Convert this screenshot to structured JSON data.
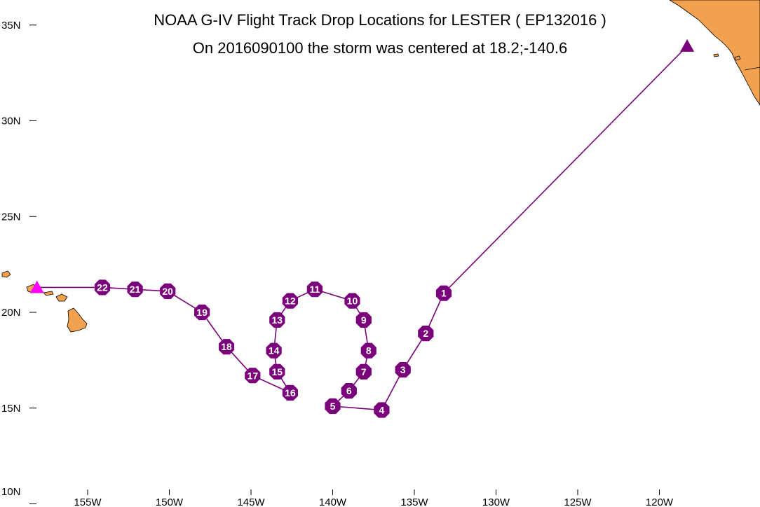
{
  "title_line1": "NOAA G-IV Flight Track Drop Locations for LESTER ( EP132016 )",
  "title_line2": "On 2016090100 the storm was centered at 18.2;-140.6",
  "lon_ticks": [
    {
      "lon": -155,
      "label": "155W"
    },
    {
      "lon": -150,
      "label": "150W"
    },
    {
      "lon": -145,
      "label": "145W"
    },
    {
      "lon": -140,
      "label": "140W"
    },
    {
      "lon": -135,
      "label": "135W"
    },
    {
      "lon": -130,
      "label": "130W"
    },
    {
      "lon": -125,
      "label": "125W"
    },
    {
      "lon": -120,
      "label": "120W"
    }
  ],
  "lat_ticks": [
    {
      "lat": 35,
      "label": "35N"
    },
    {
      "lat": 30,
      "label": "30N"
    },
    {
      "lat": 25,
      "label": "25N"
    },
    {
      "lat": 20,
      "label": "20N"
    },
    {
      "lat": 15,
      "label": "15N"
    },
    {
      "lat": 10,
      "label": "10N"
    }
  ],
  "colors": {
    "land": "#f2a14e",
    "track": "#7b007b",
    "drop_fill": "#7b007b",
    "drop_text": "#ffffff",
    "start_marker": "#ff00ff",
    "end_marker": "#7b007b"
  },
  "start_marker": {
    "lat": 21.3,
    "lon": -158.1,
    "icon": "magenta-triangle-icon"
  },
  "end_marker": {
    "lat": 33.9,
    "lon": -118.3,
    "icon": "purple-triangle-icon"
  },
  "drops": [
    {
      "id": "1",
      "lat": 21.0,
      "lon": -133.2
    },
    {
      "id": "2",
      "lat": 18.9,
      "lon": -134.3
    },
    {
      "id": "3",
      "lat": 17.0,
      "lon": -135.7
    },
    {
      "id": "4",
      "lat": 14.9,
      "lon": -137.0
    },
    {
      "id": "5",
      "lat": 15.1,
      "lon": -140.0
    },
    {
      "id": "6",
      "lat": 15.9,
      "lon": -139.0
    },
    {
      "id": "7",
      "lat": 16.9,
      "lon": -138.1
    },
    {
      "id": "8",
      "lat": 18.0,
      "lon": -137.8
    },
    {
      "id": "9",
      "lat": 19.6,
      "lon": -138.1
    },
    {
      "id": "10",
      "lat": 20.6,
      "lon": -138.8
    },
    {
      "id": "11",
      "lat": 21.2,
      "lon": -141.1
    },
    {
      "id": "12",
      "lat": 20.6,
      "lon": -142.6
    },
    {
      "id": "13",
      "lat": 19.6,
      "lon": -143.4
    },
    {
      "id": "14",
      "lat": 18.0,
      "lon": -143.6
    },
    {
      "id": "15",
      "lat": 16.9,
      "lon": -143.4
    },
    {
      "id": "16",
      "lat": 15.8,
      "lon": -142.6
    },
    {
      "id": "17",
      "lat": 16.7,
      "lon": -144.9
    },
    {
      "id": "18",
      "lat": 18.2,
      "lon": -146.5
    },
    {
      "id": "19",
      "lat": 20.0,
      "lon": -148.0
    },
    {
      "id": "20",
      "lat": 21.1,
      "lon": -150.1
    },
    {
      "id": "21",
      "lat": 21.2,
      "lon": -152.1
    },
    {
      "id": "22",
      "lat": 21.3,
      "lon": -154.1
    }
  ]
}
